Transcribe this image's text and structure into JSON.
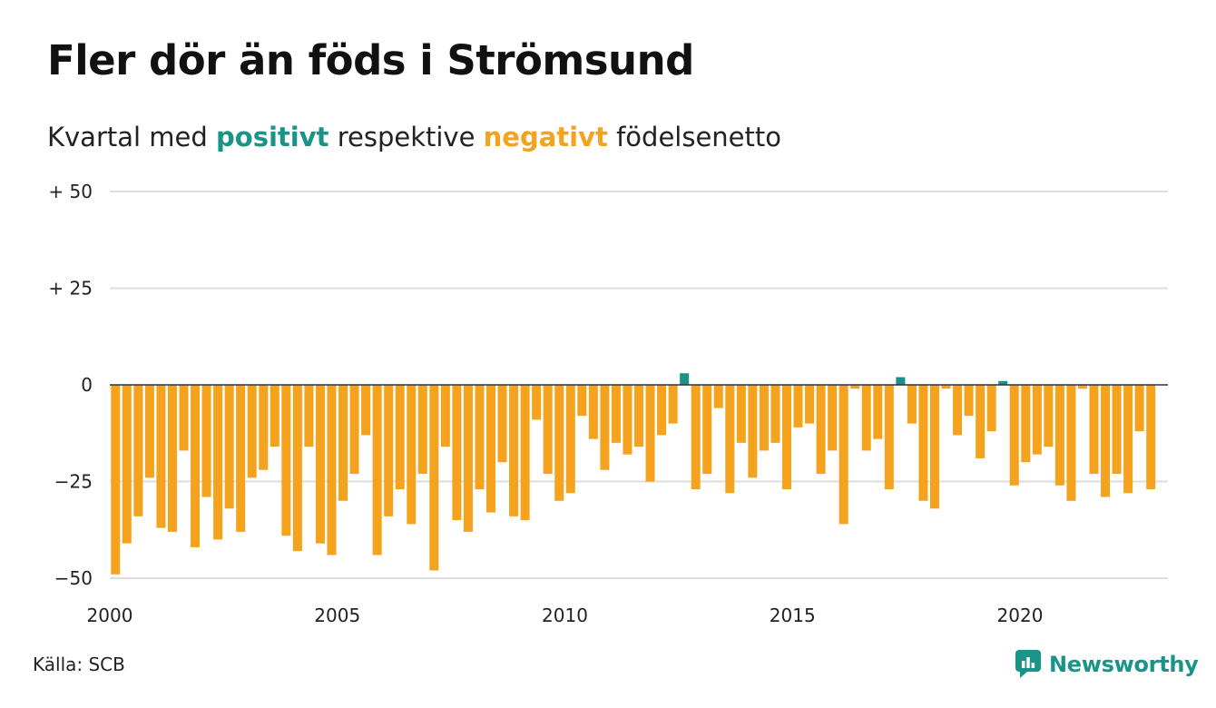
{
  "title": "Fler dör än föds i Strömsund",
  "subtitle": {
    "prefix": "Kvartal med ",
    "positive": "positivt",
    "middle": " respektive ",
    "negative": "negativt",
    "suffix": " födelsenetto"
  },
  "source": "Källa: SCB",
  "brand": "Newsworthy",
  "colors": {
    "positive": "#1a9488",
    "negative": "#f5a31e",
    "grid": "#dddddd",
    "zero_line": "#333333",
    "brand": "#1a9488"
  },
  "chart_data": {
    "type": "bar",
    "x_start": 2000,
    "x_end": 2023.25,
    "ylim": [
      -50,
      50
    ],
    "y_ticks": [
      {
        "value": 50,
        "label": "+ 50"
      },
      {
        "value": 25,
        "label": "+ 25"
      },
      {
        "value": 0,
        "label": "0"
      },
      {
        "value": -25,
        "label": "−25"
      },
      {
        "value": -50,
        "label": "−50"
      }
    ],
    "x_ticks": [
      {
        "value": 2000,
        "label": "2000"
      },
      {
        "value": 2005,
        "label": "2005"
      },
      {
        "value": 2010,
        "label": "2010"
      },
      {
        "value": 2015,
        "label": "2015"
      },
      {
        "value": 2020,
        "label": "2020"
      }
    ],
    "grid": true,
    "quarters": [
      {
        "quarter": "2000 Q1",
        "value": -49
      },
      {
        "quarter": "2000 Q2",
        "value": -41
      },
      {
        "quarter": "2000 Q3",
        "value": -34
      },
      {
        "quarter": "2000 Q4",
        "value": -24
      },
      {
        "quarter": "2001 Q1",
        "value": -37
      },
      {
        "quarter": "2001 Q2",
        "value": -38
      },
      {
        "quarter": "2001 Q3",
        "value": -17
      },
      {
        "quarter": "2001 Q4",
        "value": -42
      },
      {
        "quarter": "2002 Q1",
        "value": -29
      },
      {
        "quarter": "2002 Q2",
        "value": -40
      },
      {
        "quarter": "2002 Q3",
        "value": -32
      },
      {
        "quarter": "2002 Q4",
        "value": -38
      },
      {
        "quarter": "2003 Q1",
        "value": -24
      },
      {
        "quarter": "2003 Q2",
        "value": -22
      },
      {
        "quarter": "2003 Q3",
        "value": -16
      },
      {
        "quarter": "2003 Q4",
        "value": -39
      },
      {
        "quarter": "2004 Q1",
        "value": -43
      },
      {
        "quarter": "2004 Q2",
        "value": -16
      },
      {
        "quarter": "2004 Q3",
        "value": -41
      },
      {
        "quarter": "2004 Q4",
        "value": -44
      },
      {
        "quarter": "2005 Q1",
        "value": -30
      },
      {
        "quarter": "2005 Q2",
        "value": -23
      },
      {
        "quarter": "2005 Q3",
        "value": -13
      },
      {
        "quarter": "2005 Q4",
        "value": -44
      },
      {
        "quarter": "2006 Q1",
        "value": -34
      },
      {
        "quarter": "2006 Q2",
        "value": -27
      },
      {
        "quarter": "2006 Q3",
        "value": -36
      },
      {
        "quarter": "2006 Q4",
        "value": -23
      },
      {
        "quarter": "2007 Q1",
        "value": -48
      },
      {
        "quarter": "2007 Q2",
        "value": -16
      },
      {
        "quarter": "2007 Q3",
        "value": -35
      },
      {
        "quarter": "2007 Q4",
        "value": -38
      },
      {
        "quarter": "2008 Q1",
        "value": -27
      },
      {
        "quarter": "2008 Q2",
        "value": -33
      },
      {
        "quarter": "2008 Q3",
        "value": -20
      },
      {
        "quarter": "2008 Q4",
        "value": -34
      },
      {
        "quarter": "2009 Q1",
        "value": -35
      },
      {
        "quarter": "2009 Q2",
        "value": -9
      },
      {
        "quarter": "2009 Q3",
        "value": -23
      },
      {
        "quarter": "2009 Q4",
        "value": -30
      },
      {
        "quarter": "2010 Q1",
        "value": -28
      },
      {
        "quarter": "2010 Q2",
        "value": -8
      },
      {
        "quarter": "2010 Q3",
        "value": -14
      },
      {
        "quarter": "2010 Q4",
        "value": -22
      },
      {
        "quarter": "2011 Q1",
        "value": -15
      },
      {
        "quarter": "2011 Q2",
        "value": -18
      },
      {
        "quarter": "2011 Q3",
        "value": -16
      },
      {
        "quarter": "2011 Q4",
        "value": -25
      },
      {
        "quarter": "2012 Q1",
        "value": -13
      },
      {
        "quarter": "2012 Q2",
        "value": -10
      },
      {
        "quarter": "2012 Q3",
        "value": 3
      },
      {
        "quarter": "2012 Q4",
        "value": -27
      },
      {
        "quarter": "2013 Q1",
        "value": -23
      },
      {
        "quarter": "2013 Q2",
        "value": -6
      },
      {
        "quarter": "2013 Q3",
        "value": -28
      },
      {
        "quarter": "2013 Q4",
        "value": -15
      },
      {
        "quarter": "2014 Q1",
        "value": -24
      },
      {
        "quarter": "2014 Q2",
        "value": -17
      },
      {
        "quarter": "2014 Q3",
        "value": -15
      },
      {
        "quarter": "2014 Q4",
        "value": -27
      },
      {
        "quarter": "2015 Q1",
        "value": -11
      },
      {
        "quarter": "2015 Q2",
        "value": -10
      },
      {
        "quarter": "2015 Q3",
        "value": -23
      },
      {
        "quarter": "2015 Q4",
        "value": -17
      },
      {
        "quarter": "2016 Q1",
        "value": -36
      },
      {
        "quarter": "2016 Q2",
        "value": -1
      },
      {
        "quarter": "2016 Q3",
        "value": -17
      },
      {
        "quarter": "2016 Q4",
        "value": -14
      },
      {
        "quarter": "2017 Q1",
        "value": -27
      },
      {
        "quarter": "2017 Q2",
        "value": 2
      },
      {
        "quarter": "2017 Q3",
        "value": -10
      },
      {
        "quarter": "2017 Q4",
        "value": -30
      },
      {
        "quarter": "2018 Q1",
        "value": -32
      },
      {
        "quarter": "2018 Q2",
        "value": -1
      },
      {
        "quarter": "2018 Q3",
        "value": -13
      },
      {
        "quarter": "2018 Q4",
        "value": -8
      },
      {
        "quarter": "2019 Q1",
        "value": -19
      },
      {
        "quarter": "2019 Q2",
        "value": -12
      },
      {
        "quarter": "2019 Q3",
        "value": 1
      },
      {
        "quarter": "2019 Q4",
        "value": -26
      },
      {
        "quarter": "2020 Q1",
        "value": -20
      },
      {
        "quarter": "2020 Q2",
        "value": -18
      },
      {
        "quarter": "2020 Q3",
        "value": -16
      },
      {
        "quarter": "2020 Q4",
        "value": -26
      },
      {
        "quarter": "2021 Q1",
        "value": -30
      },
      {
        "quarter": "2021 Q2",
        "value": -1
      },
      {
        "quarter": "2021 Q3",
        "value": -23
      },
      {
        "quarter": "2021 Q4",
        "value": -29
      },
      {
        "quarter": "2022 Q1",
        "value": -23
      },
      {
        "quarter": "2022 Q2",
        "value": -28
      },
      {
        "quarter": "2022 Q3",
        "value": -12
      },
      {
        "quarter": "2022 Q4",
        "value": -27
      }
    ]
  }
}
